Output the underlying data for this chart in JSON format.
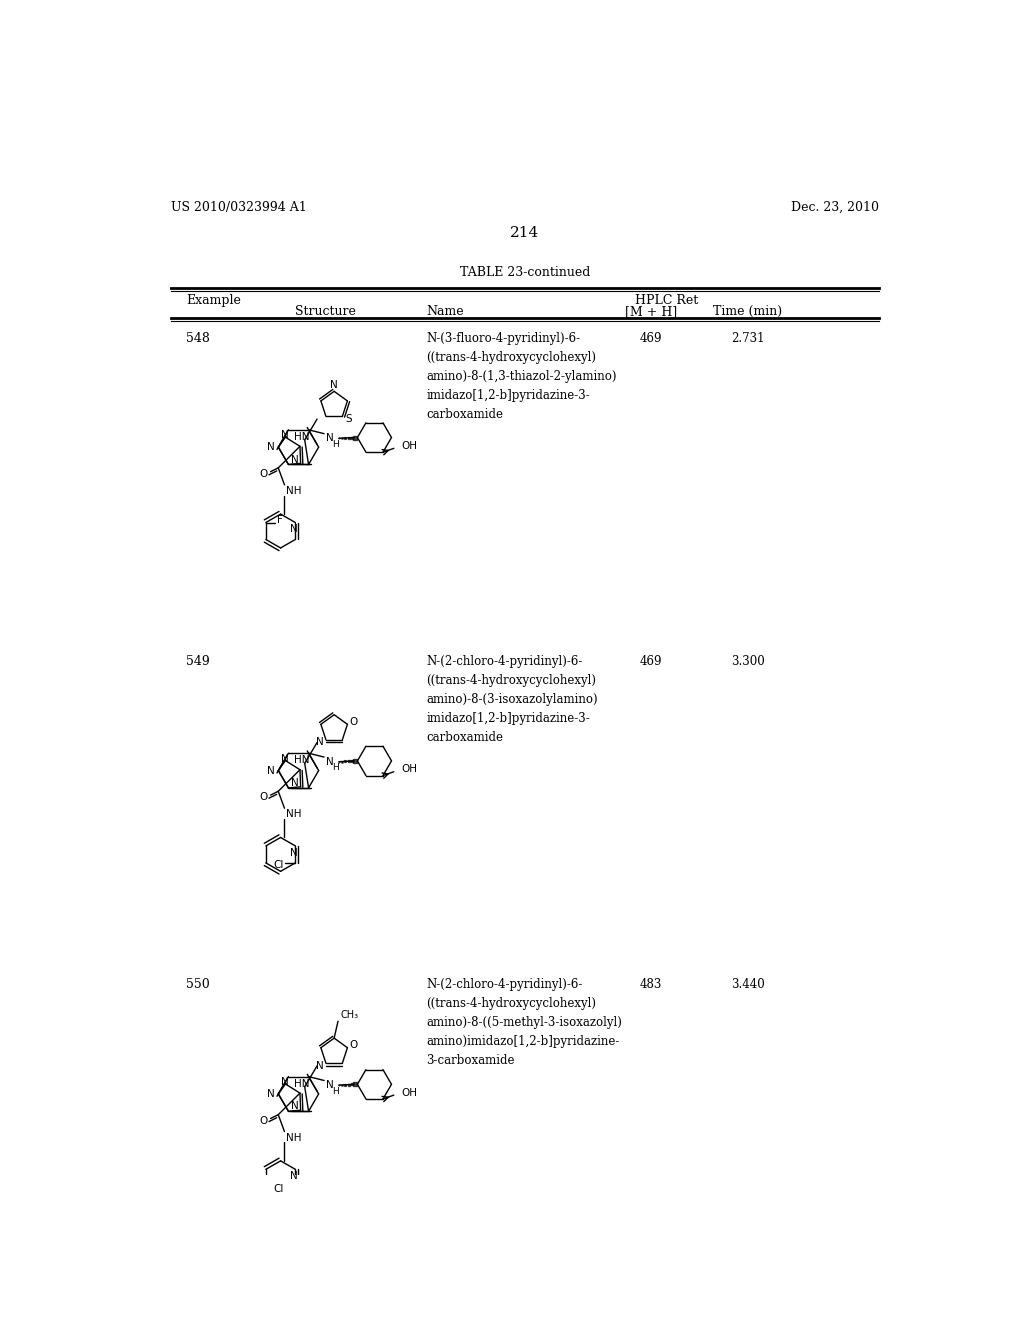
{
  "background_color": "#ffffff",
  "header_left": "US 2010/0323994 A1",
  "header_right": "Dec. 23, 2010",
  "page_number": "214",
  "table_title": "TABLE 23-continued",
  "rows": [
    {
      "example": "548",
      "name": "N-(3-fluoro-4-pyridinyl)-6-\n((trans-4-hydroxycyclohexyl)\namino)-8-(1,3-thiazol-2-ylamino)\nimidazo[1,2-b]pyridazine-3-\ncarboxamide",
      "mh": "469",
      "time": "2.731"
    },
    {
      "example": "549",
      "name": "N-(2-chloro-4-pyridinyl)-6-\n((trans-4-hydroxycyclohexyl)\namino)-8-(3-isoxazolylamino)\nimidazo[1,2-b]pyridazine-3-\ncarboxamide",
      "mh": "469",
      "time": "3.300"
    },
    {
      "example": "550",
      "name": "N-(2-chloro-4-pyridinyl)-6-\n((trans-4-hydroxycyclohexyl)\namino)-8-((5-methyl-3-isoxazolyl)\namino)imidazo[1,2-b]pyridazine-\n3-carboxamide",
      "mh": "483",
      "time": "3.440"
    }
  ]
}
